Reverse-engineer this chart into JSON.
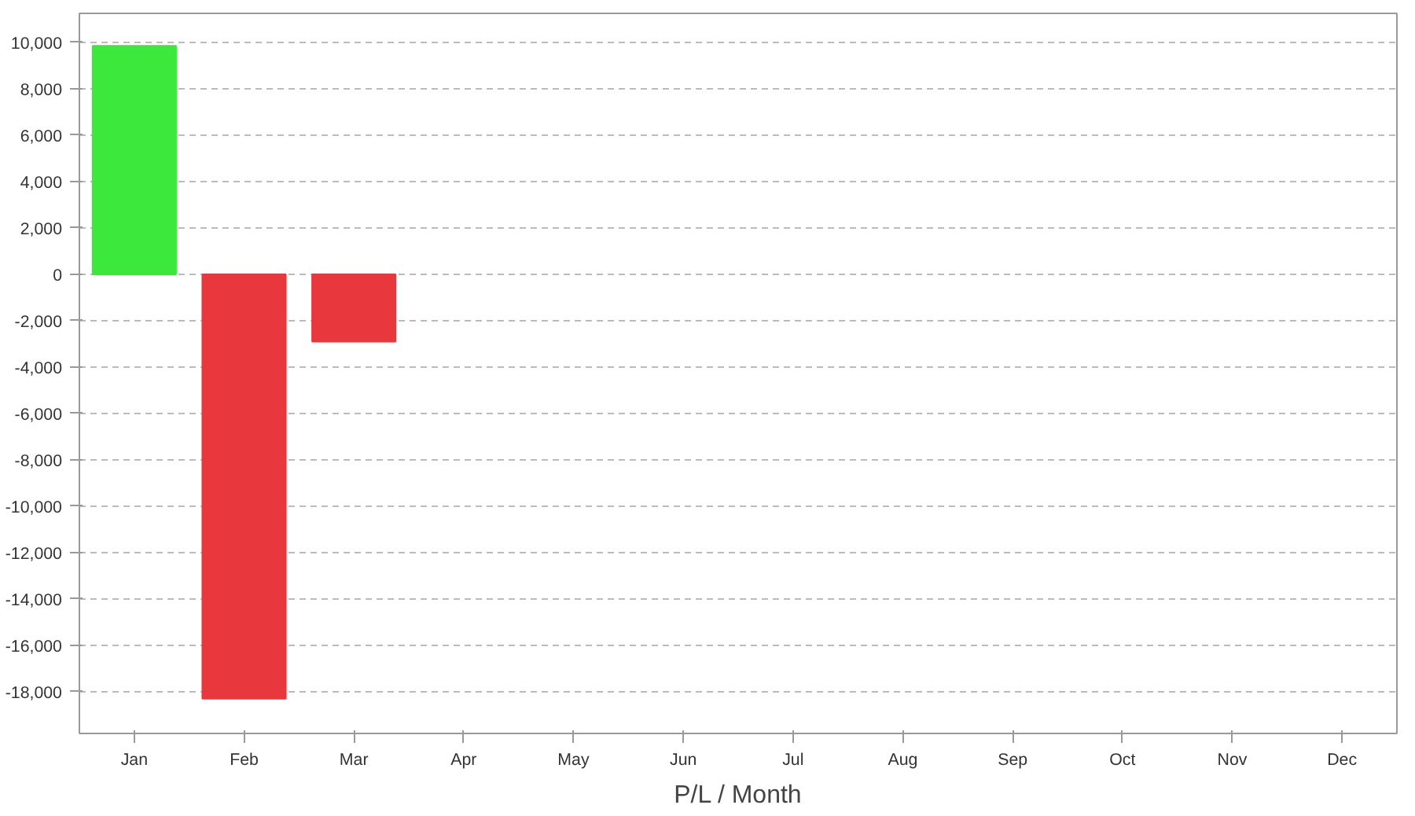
{
  "chart_data": {
    "type": "bar",
    "xlabel": "P/L / Month",
    "categories": [
      "Jan",
      "Feb",
      "Mar",
      "Apr",
      "May",
      "Jun",
      "Jul",
      "Aug",
      "Sep",
      "Oct",
      "Nov",
      "Dec"
    ],
    "values": [
      9850,
      -18300,
      -2900,
      null,
      null,
      null,
      null,
      null,
      null,
      null,
      null,
      null
    ],
    "colors": [
      "#3de83d",
      "#e8383d",
      "#e8383d",
      null,
      null,
      null,
      null,
      null,
      null,
      null,
      null,
      null
    ],
    "ylim": [
      -19800,
      11250
    ],
    "yticks": [
      {
        "value": -18000,
        "label": "-18,000"
      },
      {
        "value": -16000,
        "label": "-16,000"
      },
      {
        "value": -14000,
        "label": "-14,000"
      },
      {
        "value": -12000,
        "label": "-12,000"
      },
      {
        "value": -10000,
        "label": "-10,000"
      },
      {
        "value": -8000,
        "label": "-8,000"
      },
      {
        "value": -6000,
        "label": "-6,000"
      },
      {
        "value": -4000,
        "label": "-4,000"
      },
      {
        "value": -2000,
        "label": "-2,000"
      },
      0,
      {
        "value": 2000,
        "label": "2,000"
      },
      {
        "value": 4000,
        "label": "4,000"
      },
      {
        "value": 6000,
        "label": "6,000"
      },
      {
        "value": 8000,
        "label": "8,000"
      },
      {
        "value": 10000,
        "label": "10,000"
      }
    ],
    "grid": "y"
  }
}
